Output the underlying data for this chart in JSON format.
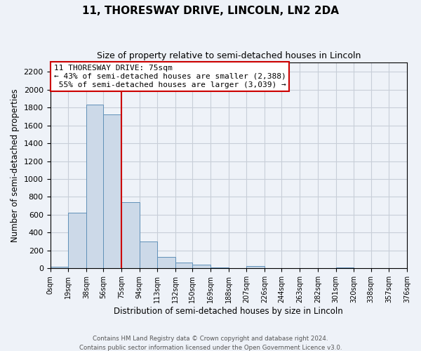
{
  "title": "11, THORESWAY DRIVE, LINCOLN, LN2 2DA",
  "subtitle": "Size of property relative to semi-detached houses in Lincoln",
  "xlabel": "Distribution of semi-detached houses by size in Lincoln",
  "ylabel": "Number of semi-detached properties",
  "bar_color": "#ccd9e8",
  "bar_edge_color": "#6090b8",
  "grid_color": "#c8ced8",
  "background_color": "#eef2f8",
  "annotation_box_color": "#ffffff",
  "annotation_line_color": "#cc0000",
  "property_line_x": 75,
  "property_size": 75,
  "smaller_pct": 43,
  "smaller_count": 2388,
  "larger_pct": 55,
  "larger_count": 3039,
  "bin_edges": [
    0,
    19,
    38,
    56,
    75,
    94,
    113,
    132,
    150,
    169,
    188,
    207,
    226,
    244,
    263,
    282,
    301,
    320,
    338,
    357,
    376
  ],
  "bin_labels": [
    "0sqm",
    "19sqm",
    "38sqm",
    "56sqm",
    "75sqm",
    "94sqm",
    "113sqm",
    "132sqm",
    "150sqm",
    "169sqm",
    "188sqm",
    "207sqm",
    "226sqm",
    "244sqm",
    "263sqm",
    "282sqm",
    "301sqm",
    "320sqm",
    "338sqm",
    "357sqm",
    "376sqm"
  ],
  "bar_heights": [
    20,
    625,
    1830,
    1720,
    740,
    305,
    130,
    65,
    40,
    10,
    0,
    30,
    0,
    0,
    0,
    0,
    10,
    0,
    0,
    0
  ],
  "ylim": [
    0,
    2300
  ],
  "yticks": [
    0,
    200,
    400,
    600,
    800,
    1000,
    1200,
    1400,
    1600,
    1800,
    2000,
    2200
  ],
  "footer_line1": "Contains HM Land Registry data © Crown copyright and database right 2024.",
  "footer_line2": "Contains public sector information licensed under the Open Government Licence v3.0."
}
